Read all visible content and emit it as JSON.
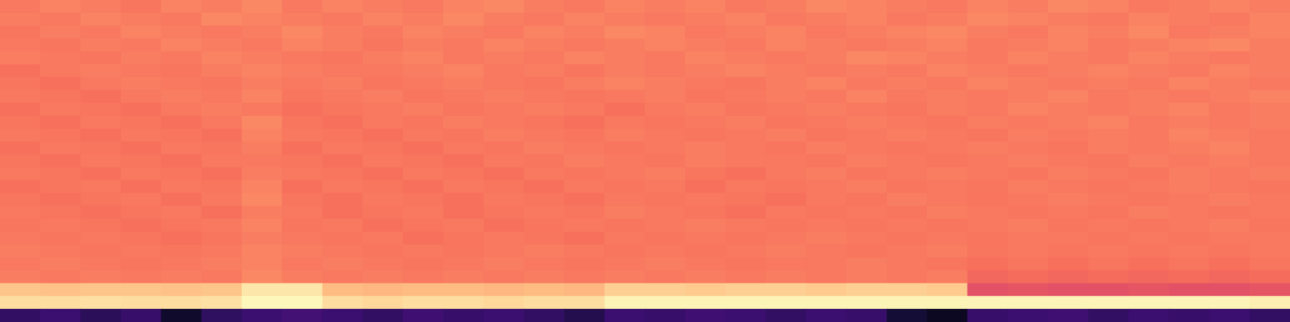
{
  "chart_data": {
    "type": "heatmap",
    "color": "magma",
    "tick_labels": false,
    "grid": false,
    "color_range": [
      0,
      1
    ],
    "cells": [
      [
        0.72,
        0.74,
        0.73,
        0.71,
        0.74,
        0.73,
        0.75,
        0.72,
        0.74,
        0.73,
        0.72,
        0.74,
        0.75,
        0.73,
        0.72,
        0.74,
        0.73,
        0.74,
        0.72,
        0.73,
        0.75,
        0.74,
        0.73,
        0.72,
        0.74,
        0.73,
        0.75,
        0.74,
        0.72,
        0.73,
        0.74,
        0.73
      ],
      [
        0.73,
        0.72,
        0.74,
        0.73,
        0.72,
        0.75,
        0.74,
        0.73,
        0.72,
        0.74,
        0.73,
        0.75,
        0.73,
        0.72,
        0.74,
        0.73,
        0.72,
        0.73,
        0.74,
        0.72,
        0.73,
        0.74,
        0.72,
        0.73,
        0.75,
        0.74,
        0.73,
        0.72,
        0.74,
        0.73,
        0.72,
        0.74
      ],
      [
        0.71,
        0.73,
        0.72,
        0.74,
        0.73,
        0.72,
        0.73,
        0.75,
        0.73,
        0.72,
        0.74,
        0.73,
        0.72,
        0.74,
        0.73,
        0.75,
        0.74,
        0.72,
        0.73,
        0.74,
        0.72,
        0.73,
        0.74,
        0.75,
        0.73,
        0.72,
        0.74,
        0.73,
        0.75,
        0.72,
        0.73,
        0.74
      ],
      [
        0.72,
        0.71,
        0.73,
        0.72,
        0.74,
        0.73,
        0.72,
        0.74,
        0.73,
        0.71,
        0.73,
        0.72,
        0.74,
        0.73,
        0.72,
        0.73,
        0.74,
        0.73,
        0.72,
        0.74,
        0.73,
        0.72,
        0.73,
        0.74,
        0.72,
        0.73,
        0.74,
        0.72,
        0.73,
        0.74,
        0.75,
        0.73
      ],
      [
        0.73,
        0.72,
        0.71,
        0.73,
        0.72,
        0.74,
        0.73,
        0.72,
        0.71,
        0.73,
        0.74,
        0.72,
        0.73,
        0.72,
        0.74,
        0.73,
        0.72,
        0.74,
        0.73,
        0.72,
        0.73,
        0.75,
        0.74,
        0.73,
        0.72,
        0.74,
        0.73,
        0.72,
        0.74,
        0.73,
        0.72,
        0.73
      ],
      [
        0.7,
        0.72,
        0.73,
        0.72,
        0.71,
        0.73,
        0.74,
        0.73,
        0.72,
        0.72,
        0.73,
        0.74,
        0.72,
        0.73,
        0.71,
        0.73,
        0.72,
        0.73,
        0.74,
        0.73,
        0.72,
        0.73,
        0.72,
        0.74,
        0.73,
        0.72,
        0.73,
        0.74,
        0.73,
        0.72,
        0.74,
        0.73
      ],
      [
        0.71,
        0.7,
        0.72,
        0.73,
        0.72,
        0.71,
        0.73,
        0.72,
        0.73,
        0.71,
        0.72,
        0.73,
        0.72,
        0.71,
        0.73,
        0.74,
        0.73,
        0.72,
        0.71,
        0.73,
        0.74,
        0.72,
        0.73,
        0.72,
        0.74,
        0.73,
        0.72,
        0.73,
        0.72,
        0.74,
        0.73,
        0.72
      ],
      [
        0.72,
        0.71,
        0.7,
        0.72,
        0.73,
        0.72,
        0.74,
        0.71,
        0.72,
        0.73,
        0.71,
        0.72,
        0.73,
        0.72,
        0.71,
        0.72,
        0.73,
        0.71,
        0.72,
        0.73,
        0.72,
        0.74,
        0.72,
        0.73,
        0.72,
        0.73,
        0.74,
        0.72,
        0.73,
        0.72,
        0.73,
        0.74
      ],
      [
        0.7,
        0.72,
        0.71,
        0.7,
        0.72,
        0.73,
        0.72,
        0.7,
        0.71,
        0.72,
        0.73,
        0.71,
        0.72,
        0.73,
        0.72,
        0.7,
        0.72,
        0.73,
        0.71,
        0.72,
        0.73,
        0.72,
        0.71,
        0.73,
        0.72,
        0.74,
        0.73,
        0.72,
        0.73,
        0.74,
        0.72,
        0.73
      ],
      [
        0.71,
        0.7,
        0.72,
        0.71,
        0.7,
        0.72,
        0.75,
        0.71,
        0.7,
        0.72,
        0.71,
        0.73,
        0.72,
        0.71,
        0.7,
        0.72,
        0.71,
        0.72,
        0.73,
        0.71,
        0.72,
        0.73,
        0.72,
        0.71,
        0.73,
        0.72,
        0.73,
        0.74,
        0.72,
        0.73,
        0.72,
        0.73
      ],
      [
        0.72,
        0.71,
        0.7,
        0.72,
        0.71,
        0.7,
        0.74,
        0.72,
        0.71,
        0.7,
        0.72,
        0.71,
        0.73,
        0.72,
        0.71,
        0.73,
        0.72,
        0.71,
        0.72,
        0.73,
        0.71,
        0.72,
        0.73,
        0.72,
        0.71,
        0.73,
        0.72,
        0.73,
        0.72,
        0.74,
        0.73,
        0.72
      ],
      [
        0.7,
        0.72,
        0.71,
        0.7,
        0.72,
        0.71,
        0.73,
        0.7,
        0.72,
        0.71,
        0.7,
        0.72,
        0.71,
        0.73,
        0.72,
        0.71,
        0.72,
        0.73,
        0.72,
        0.71,
        0.73,
        0.72,
        0.71,
        0.72,
        0.73,
        0.72,
        0.71,
        0.73,
        0.72,
        0.73,
        0.74,
        0.72
      ],
      [
        0.71,
        0.7,
        0.72,
        0.71,
        0.7,
        0.72,
        0.72,
        0.71,
        0.7,
        0.72,
        0.71,
        0.7,
        0.72,
        0.71,
        0.73,
        0.72,
        0.71,
        0.73,
        0.72,
        0.72,
        0.71,
        0.73,
        0.72,
        0.71,
        0.72,
        0.73,
        0.72,
        0.71,
        0.73,
        0.72,
        0.73,
        0.72
      ],
      [
        0.72,
        0.71,
        0.7,
        0.72,
        0.71,
        0.7,
        0.73,
        0.72,
        0.71,
        0.7,
        0.72,
        0.71,
        0.7,
        0.72,
        0.71,
        0.72,
        0.73,
        0.71,
        0.7,
        0.72,
        0.73,
        0.71,
        0.72,
        0.73,
        0.72,
        0.71,
        0.73,
        0.72,
        0.71,
        0.73,
        0.72,
        0.73
      ],
      [
        0.7,
        0.71,
        0.72,
        0.7,
        0.72,
        0.71,
        0.74,
        0.7,
        0.72,
        0.71,
        0.7,
        0.72,
        0.71,
        0.7,
        0.72,
        0.71,
        0.72,
        0.7,
        0.72,
        0.71,
        0.72,
        0.73,
        0.71,
        0.72,
        0.71,
        0.73,
        0.72,
        0.71,
        0.72,
        0.73,
        0.72,
        0.71
      ],
      [
        0.71,
        0.7,
        0.71,
        0.72,
        0.7,
        0.72,
        0.75,
        0.71,
        0.7,
        0.72,
        0.71,
        0.7,
        0.72,
        0.71,
        0.7,
        0.72,
        0.71,
        0.72,
        0.71,
        0.7,
        0.72,
        0.71,
        0.73,
        0.72,
        0.71,
        0.72,
        0.73,
        0.72,
        0.71,
        0.72,
        0.73,
        0.72
      ],
      [
        0.72,
        0.71,
        0.7,
        0.71,
        0.72,
        0.7,
        0.73,
        0.72,
        0.7,
        0.71,
        0.72,
        0.7,
        0.71,
        0.72,
        0.71,
        0.73,
        0.72,
        0.71,
        0.7,
        0.72,
        0.71,
        0.72,
        0.71,
        0.73,
        0.72,
        0.71,
        0.72,
        0.71,
        0.73,
        0.72,
        0.71,
        0.72
      ],
      [
        0.71,
        0.72,
        0.71,
        0.7,
        0.71,
        0.72,
        0.74,
        0.71,
        0.72,
        0.7,
        0.71,
        0.72,
        0.7,
        0.71,
        0.72,
        0.71,
        0.72,
        0.73,
        0.72,
        0.71,
        0.72,
        0.71,
        0.72,
        0.71,
        0.72,
        0.73,
        0.71,
        0.72,
        0.71,
        0.72,
        0.73,
        0.71
      ],
      [
        0.72,
        0.71,
        0.72,
        0.71,
        0.7,
        0.71,
        0.73,
        0.72,
        0.71,
        0.72,
        0.7,
        0.71,
        0.72,
        0.71,
        0.7,
        0.72,
        0.71,
        0.72,
        0.71,
        0.72,
        0.73,
        0.72,
        0.71,
        0.72,
        0.71,
        0.72,
        0.72,
        0.71,
        0.72,
        0.71,
        0.72,
        0.72
      ],
      [
        0.73,
        0.72,
        0.71,
        0.72,
        0.71,
        0.72,
        0.74,
        0.73,
        0.72,
        0.71,
        0.72,
        0.71,
        0.72,
        0.73,
        0.72,
        0.71,
        0.72,
        0.71,
        0.72,
        0.73,
        0.72,
        0.71,
        0.72,
        0.73,
        0.71,
        0.72,
        0.71,
        0.72,
        0.71,
        0.72,
        0.71,
        0.72
      ],
      [
        0.72,
        0.73,
        0.72,
        0.71,
        0.72,
        0.73,
        0.74,
        0.72,
        0.73,
        0.72,
        0.71,
        0.72,
        0.73,
        0.72,
        0.71,
        0.72,
        0.73,
        0.72,
        0.71,
        0.72,
        0.72,
        0.73,
        0.72,
        0.71,
        0.7,
        0.71,
        0.7,
        0.71,
        0.7,
        0.71,
        0.7,
        0.71
      ],
      [
        0.73,
        0.72,
        0.73,
        0.72,
        0.73,
        0.72,
        0.75,
        0.73,
        0.72,
        0.73,
        0.72,
        0.73,
        0.72,
        0.73,
        0.72,
        0.73,
        0.72,
        0.73,
        0.72,
        0.73,
        0.72,
        0.73,
        0.72,
        0.73,
        0.68,
        0.69,
        0.68,
        0.69,
        0.68,
        0.69,
        0.68,
        0.69
      ],
      [
        0.88,
        0.87,
        0.88,
        0.88,
        0.87,
        0.88,
        0.95,
        0.95,
        0.86,
        0.85,
        0.86,
        0.86,
        0.85,
        0.86,
        0.85,
        0.9,
        0.9,
        0.89,
        0.9,
        0.9,
        0.89,
        0.9,
        0.9,
        0.89,
        0.62,
        0.63,
        0.62,
        0.62,
        0.63,
        0.62,
        0.62,
        0.63
      ],
      [
        0.93,
        0.93,
        0.94,
        0.93,
        0.93,
        0.94,
        0.99,
        0.99,
        0.93,
        0.92,
        0.93,
        0.93,
        0.92,
        0.93,
        0.93,
        0.98,
        0.98,
        0.98,
        0.98,
        0.98,
        0.98,
        0.98,
        0.98,
        0.98,
        0.98,
        0.98,
        0.98,
        0.98,
        0.98,
        0.98,
        0.98,
        0.97
      ],
      [
        0.18,
        0.2,
        0.16,
        0.19,
        0.08,
        0.17,
        0.2,
        0.22,
        0.2,
        0.18,
        0.21,
        0.19,
        0.2,
        0.18,
        0.14,
        0.2,
        0.19,
        0.21,
        0.2,
        0.18,
        0.2,
        0.19,
        0.1,
        0.06,
        0.19,
        0.2,
        0.21,
        0.18,
        0.2,
        0.19,
        0.2,
        0.18
      ]
    ]
  }
}
